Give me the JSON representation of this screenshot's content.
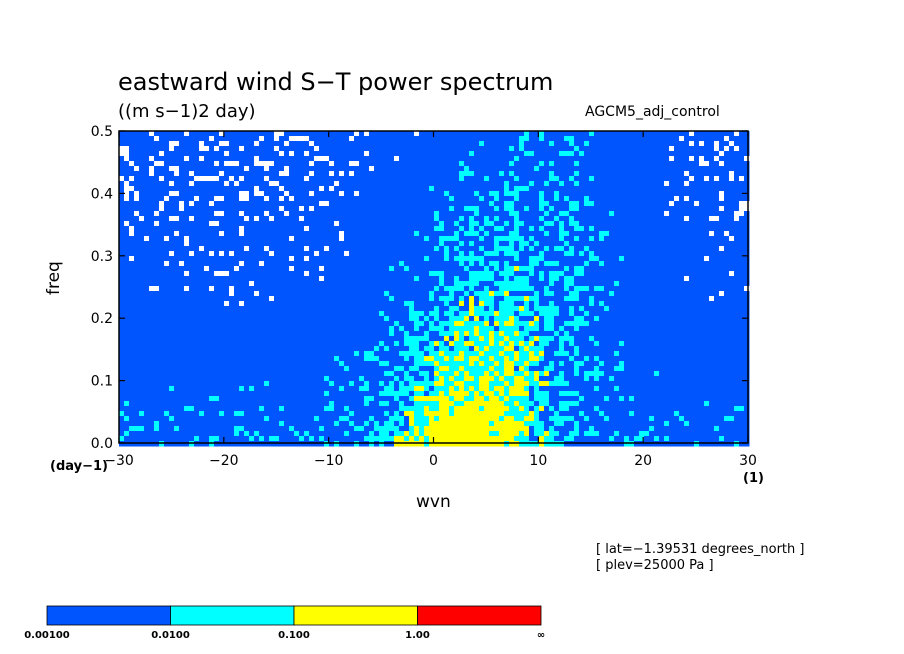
{
  "chart_data": {
    "type": "heatmap",
    "title": "eastward wind S−T power spectrum",
    "units_label": "((m s−1)2 day)",
    "run_label": "AGCM5_adj_control",
    "xlabel": "wvn",
    "ylabel": "freq",
    "x_unit_left": "(day−1)",
    "x_unit_right": "(1)",
    "xlim": [
      -30,
      30
    ],
    "ylim": [
      0,
      0.5
    ],
    "x_ticks": [
      "−30",
      "−20",
      "−10",
      "0",
      "10",
      "20",
      "30"
    ],
    "x_tick_values": [
      -30,
      -20,
      -10,
      0,
      10,
      20,
      30
    ],
    "y_ticks": [
      "0.0",
      "0.1",
      "0.2",
      "0.3",
      "0.4",
      "0.5"
    ],
    "y_tick_values": [
      0,
      0.1,
      0.2,
      0.3,
      0.4,
      0.5
    ],
    "annotations": [
      "[ lat=−1.39531 degrees_north ]",
      "[ plev=25000 Pa ]"
    ],
    "levels": [
      {
        "label": "0.00100",
        "color": "#0055ff"
      },
      {
        "label": "0.0100",
        "color": "#00ffff"
      },
      {
        "label": "0.100",
        "color": "#ffff00"
      },
      {
        "label": "1.00",
        "color": "#ff0000"
      },
      {
        "label": "∞",
        "color": null
      }
    ],
    "background_color": "#ffffff",
    "features": [
      {
        "level": 1,
        "x_center": 3,
        "y_center": 0.13,
        "x_halfwidth": 8,
        "y_halfwidth": 0.13,
        "description_color": "#00ffff"
      },
      {
        "level": 2,
        "x_center": 3.5,
        "y_center": 0.1,
        "x_halfwidth": 3.5,
        "y_halfwidth": 0.1,
        "description_color": "#ffff00"
      }
    ]
  }
}
